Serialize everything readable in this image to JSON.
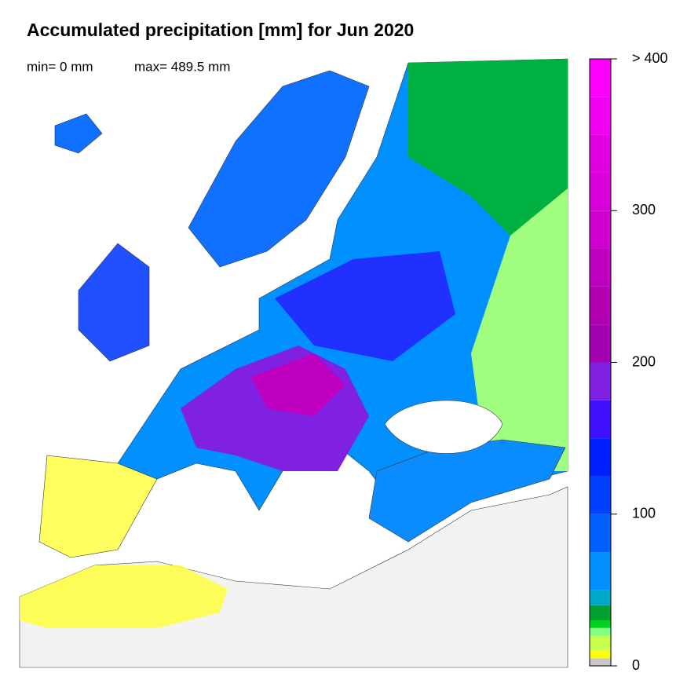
{
  "title": "Accumulated precipitation [mm] for Jun 2020",
  "stats": {
    "min": "min= 0 mm",
    "max": "max= 489.5 mm"
  },
  "colorbar": {
    "bounds": [
      0,
      5,
      10,
      20,
      25,
      30,
      40,
      50,
      75,
      100,
      125,
      150,
      175,
      200,
      225,
      250,
      275,
      300,
      325,
      350,
      375,
      400
    ],
    "colors": [
      "#c8c8c8",
      "#ffff00",
      "#c8ff50",
      "#80ff80",
      "#00d020",
      "#00a030",
      "#00a8c8",
      "#0090ff",
      "#0060ff",
      "#0040ff",
      "#0020ff",
      "#4010ff",
      "#8020e0",
      "#a000b0",
      "#b000b0",
      "#c000c0",
      "#d000d0",
      "#d800d8",
      "#e000e0",
      "#f000f0",
      "#ff00ff"
    ],
    "ticks": [
      0,
      100,
      200,
      300,
      {
        "value": 400,
        "label": "> 400"
      }
    ]
  }
}
